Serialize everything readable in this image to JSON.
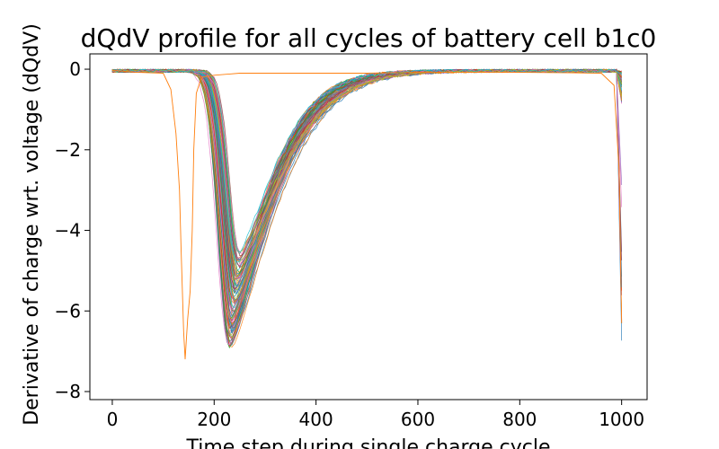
{
  "chart_data": {
    "type": "line",
    "title": "dQdV profile for all cycles of battery cell b1c0",
    "xlabel": "Time step during single charge cycle",
    "ylabel": "Derivative of charge wrt. voltage (dQdV)",
    "xlim": [
      -44,
      1050
    ],
    "ylim": [
      -8.2,
      0.38
    ],
    "xticks": [
      0,
      200,
      400,
      600,
      800,
      1000
    ],
    "yticks": [
      0,
      -2,
      -4,
      -6,
      -8
    ],
    "xtick_labels": [
      "0",
      "200",
      "400",
      "600",
      "800",
      "1000"
    ],
    "ytick_labels": [
      "0",
      "−2",
      "−4",
      "−6",
      "−8"
    ],
    "grid": false,
    "legend": "none",
    "series_count_note": "many overlaid cycles",
    "series_colors": [
      "#1f77b4",
      "#ff7f0e",
      "#2ca02c",
      "#d62728",
      "#9467bd",
      "#8c564b",
      "#e377c2",
      "#7f7f7f",
      "#bcbd22",
      "#17becf"
    ],
    "envelope": {
      "trough_early": {
        "x": 230,
        "y": -6.9
      },
      "trough_late": {
        "x": 250,
        "y": -4.6
      }
    },
    "outlier_series": {
      "color": "#ff7f0e",
      "x": [
        0,
        50,
        100,
        115,
        125,
        132,
        135,
        140,
        143,
        148,
        153,
        157,
        160,
        165,
        175,
        200,
        250,
        300,
        400,
        500,
        600,
        700,
        800,
        900,
        960,
        985,
        995,
        1000
      ],
      "y": [
        -0.03,
        -0.08,
        -0.1,
        -0.5,
        -1.6,
        -3.0,
        -4.4,
        -6.5,
        -7.2,
        -6.2,
        -5.5,
        -4.0,
        -2.0,
        -0.6,
        -0.2,
        -0.15,
        -0.1,
        -0.1,
        -0.1,
        -0.1,
        -0.08,
        -0.08,
        -0.08,
        -0.09,
        -0.1,
        -0.4,
        -2.5,
        -6.3
      ]
    }
  }
}
